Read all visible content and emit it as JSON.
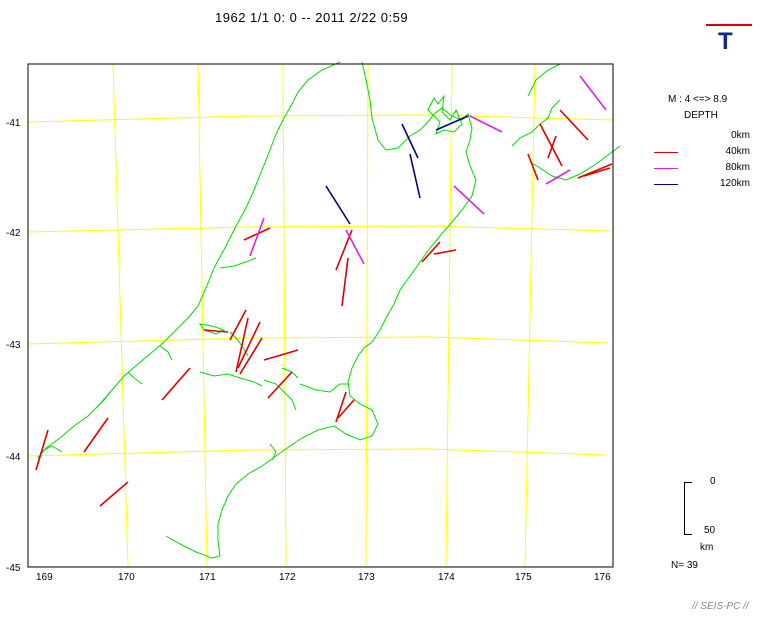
{
  "title": "1962 1/1 0: 0 -- 2011 2/22 0:59",
  "logo_letter": "T",
  "legend": {
    "magnitude": "M : 4 <=> 8.9",
    "depth_title": "DEPTH",
    "rows": [
      {
        "label": "0km",
        "color": ""
      },
      {
        "label": "40km",
        "color": "#e00000"
      },
      {
        "label": "80km",
        "color": "#e020e0"
      },
      {
        "label": "120km",
        "color": "#000080"
      }
    ]
  },
  "axes": {
    "lon_ticks": [
      "169",
      "170",
      "171",
      "172",
      "173",
      "174",
      "175",
      "176"
    ],
    "lat_ticks": [
      "-41",
      "-42",
      "-43",
      "-44",
      "-45"
    ]
  },
  "scale_bar": {
    "top": "0",
    "bottom": "50",
    "unit": "km"
  },
  "count": "N= 39",
  "credit": "// SEIS-PC //",
  "colors": {
    "coast": "#00dd00",
    "grid": "#ffff00",
    "frame": "#000000"
  }
}
